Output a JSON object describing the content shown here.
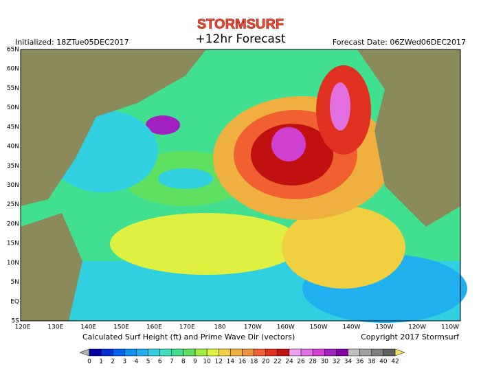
{
  "header": {
    "brand": "STORMSURF",
    "forecast": "+12hr Forecast",
    "initialized": "Initialized: 18ZTue05DEC2017",
    "forecast_date": "Forecast Date: 06ZWed06DEC2017"
  },
  "map": {
    "lat_labels": [
      "65N",
      "60N",
      "55N",
      "50N",
      "45N",
      "40N",
      "35N",
      "30N",
      "25N",
      "20N",
      "15N",
      "10N",
      "5N",
      "EQ",
      "5S"
    ],
    "lon_labels": [
      "120E",
      "130E",
      "140E",
      "150E",
      "160E",
      "170E",
      "180",
      "170W",
      "160W",
      "150W",
      "140W",
      "130W",
      "120W",
      "110W"
    ]
  },
  "footer": {
    "caption": "Calculated Surf Height (ft) and Prime Wave Dir (vectors)",
    "copyright": "Copyright 2017 Stormsurf"
  },
  "scale": {
    "labels": [
      0,
      1,
      2,
      3,
      4,
      5,
      6,
      7,
      8,
      9,
      10,
      12,
      14,
      16,
      18,
      20,
      22,
      24,
      26,
      28,
      30,
      32,
      34,
      36,
      38,
      40,
      42
    ],
    "colors": [
      "#b0b0b0",
      "#0000a0",
      "#0030d0",
      "#0060f0",
      "#1090f0",
      "#20b0f0",
      "#30d0e0",
      "#40e0c0",
      "#40e090",
      "#60e060",
      "#a0f040",
      "#e0f040",
      "#f0d040",
      "#f0b040",
      "#f09040",
      "#f06030",
      "#e03020",
      "#c01010",
      "#f0a0f0",
      "#e070e0",
      "#d040d0",
      "#a020c0",
      "#8000a0",
      "#c0c0c0",
      "#a0a0a0",
      "#808080",
      "#606060",
      "#f0e060"
    ]
  }
}
